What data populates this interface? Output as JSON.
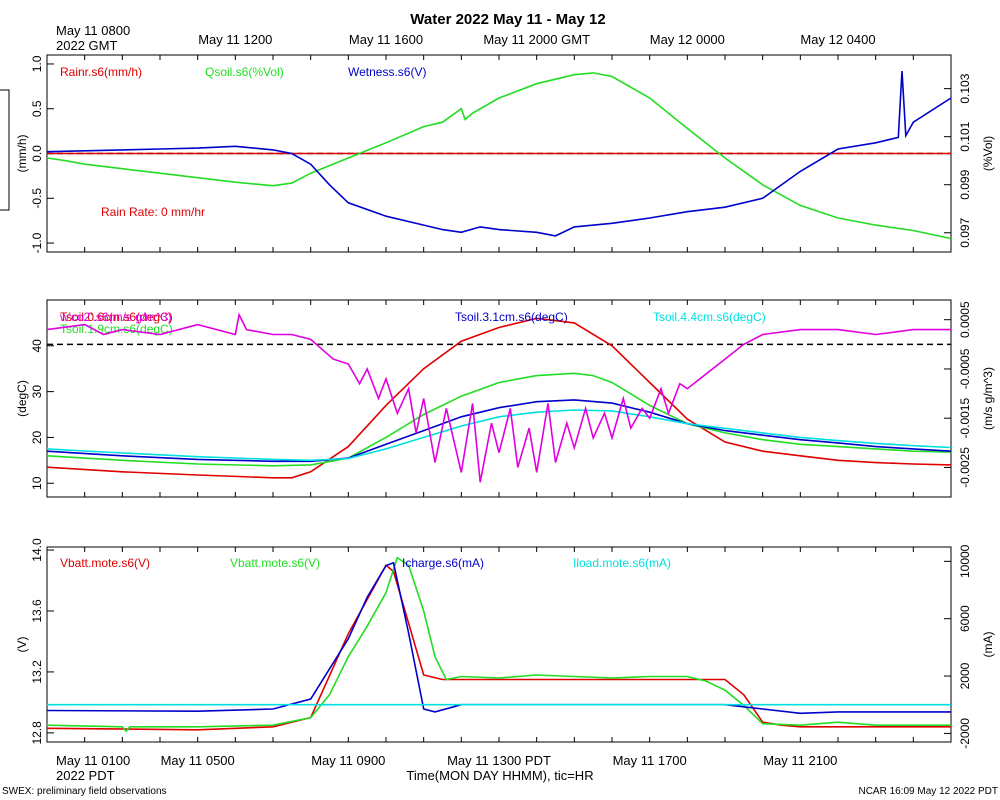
{
  "header": {
    "title": "Water 2022 May 11 - May 12",
    "start_gmt_line1": "May 11 0800",
    "start_gmt_line2": "2022 GMT",
    "start_pdt_line1": "May 11 0100",
    "start_pdt_line2": "2022 PDT",
    "xlabel": "Time(MON DAY HHMM), tic=HR",
    "footer_left": "SWEX: preliminary field observations",
    "footer_right": "NCAR 16:09 May 12 2022 PDT"
  },
  "colors": {
    "red": "#e00000",
    "green": "#22dd22",
    "blue": "#0000cc",
    "cyan": "#00e0e0",
    "magenta": "#e000e0",
    "black": "#000000"
  },
  "chart_data": [
    {
      "type": "line",
      "title": "Water 2022 May 11 - May 12",
      "xlim": [
        0,
        24
      ],
      "top_ticks": [
        {
          "x": 5,
          "label": "May 11 1200"
        },
        {
          "x": 9,
          "label": "May 11 1600"
        },
        {
          "x": 13,
          "label": "May 11 2000 GMT"
        },
        {
          "x": 17,
          "label": "May 12 0000"
        },
        {
          "x": 21,
          "label": "May 12 0400"
        }
      ],
      "ylabel_left": "(mm/h)",
      "ylabel_right": "(%Vol)",
      "ylim_left": [
        -1.1,
        1.1
      ],
      "ylim_right": [
        0.0962,
        0.1044
      ],
      "yticks_left": [
        "-1.0",
        "-0.5",
        "0.0",
        "0.5",
        "1.0"
      ],
      "yticks_right": [
        "0.097",
        "0.099",
        "0.101",
        "0.103"
      ],
      "annotation": "Rain Rate: 0 mm/hr",
      "series": [
        {
          "name": "Rainr.s6(mm/h)",
          "color": "red",
          "axis": "left",
          "x": [
            0,
            24
          ],
          "y": [
            0,
            0
          ]
        },
        {
          "name": "Qsoil.s6(%Vol)",
          "color": "green",
          "axis": "left",
          "x": [
            0,
            0.5,
            1,
            2,
            3,
            4,
            5,
            6,
            6.5,
            7,
            8,
            9,
            10,
            10.5,
            11,
            11.1,
            11.3,
            12,
            13,
            14,
            14.5,
            15,
            16,
            17,
            18,
            19,
            20,
            21,
            22,
            23,
            24
          ],
          "y": [
            -0.05,
            -0.08,
            -0.12,
            -0.17,
            -0.22,
            -0.27,
            -0.32,
            -0.36,
            -0.33,
            -0.22,
            -0.05,
            0.12,
            0.3,
            0.35,
            0.5,
            0.38,
            0.45,
            0.62,
            0.78,
            0.88,
            0.9,
            0.86,
            0.62,
            0.28,
            -0.05,
            -0.35,
            -0.58,
            -0.72,
            -0.8,
            -0.86,
            -0.95
          ]
        },
        {
          "name": "Wetness.s6(V)",
          "color": "blue",
          "axis": "left",
          "x": [
            0,
            1,
            2,
            3,
            4,
            5,
            6,
            6.5,
            7,
            7.5,
            8,
            9,
            10,
            10.5,
            11,
            11.5,
            12,
            13,
            13.5,
            14,
            15,
            16,
            17,
            18,
            19,
            20,
            21,
            22,
            22.6,
            22.7,
            22.8,
            23,
            24
          ],
          "y": [
            0.02,
            0.03,
            0.04,
            0.05,
            0.06,
            0.08,
            0.04,
            0,
            -0.12,
            -0.35,
            -0.55,
            -0.7,
            -0.8,
            -0.85,
            -0.88,
            -0.82,
            -0.85,
            -0.88,
            -0.92,
            -0.82,
            -0.78,
            -0.72,
            -0.65,
            -0.6,
            -0.5,
            -0.2,
            0.05,
            0.12,
            0.18,
            0.92,
            0.2,
            0.35,
            0.62
          ]
        }
      ]
    },
    {
      "type": "line",
      "xlim": [
        0,
        24
      ],
      "ylabel_left": "(degC)",
      "ylabel_right": "(m/s g/m^3)",
      "ylim_left": [
        7,
        50
      ],
      "ylim_right": [
        -0.0031,
        0.0009
      ],
      "yticks_left": [
        "10",
        "20",
        "30",
        "40"
      ],
      "yticks_right": [
        "-0.0025",
        "-0.0015",
        "-0.0005",
        "0.0005"
      ],
      "series": [
        {
          "name": "Tsoil.0.6cm.s6(degC)",
          "color": "red",
          "axis": "left",
          "x": [
            0,
            2,
            4,
            6,
            6.5,
            7,
            8,
            9,
            10,
            11,
            12,
            13,
            14,
            15,
            16,
            17,
            18,
            19,
            20,
            21,
            22,
            23,
            24
          ],
          "y": [
            13.5,
            12.5,
            11.8,
            11.2,
            11.2,
            12.5,
            18,
            27,
            35,
            41,
            44,
            46,
            45,
            40,
            32,
            24,
            19,
            17,
            16,
            15,
            14.5,
            14.2,
            14
          ]
        },
        {
          "name": "Tsoil.1.9cm.s6(degC)",
          "color": "green",
          "axis": "left",
          "x": [
            0,
            2,
            4,
            6,
            7,
            8,
            9,
            10,
            11,
            12,
            13,
            14,
            14.5,
            15,
            16,
            17,
            18,
            19,
            20,
            21,
            22,
            23,
            24
          ],
          "y": [
            16,
            15,
            14.2,
            13.8,
            14,
            15.5,
            20,
            25,
            29,
            32,
            33.5,
            34,
            33.5,
            32,
            27,
            23,
            21,
            19.5,
            18.5,
            18,
            17.5,
            17,
            16.8
          ]
        },
        {
          "name": "Tsoil.3.1cm.s6(degC)",
          "color": "blue",
          "axis": "left",
          "x": [
            0,
            2,
            4,
            6,
            7,
            8,
            9,
            10,
            11,
            12,
            13,
            14,
            15,
            16,
            17,
            18,
            19,
            20,
            21,
            22,
            23,
            24
          ],
          "y": [
            17,
            16,
            15.2,
            14.8,
            14.8,
            15.5,
            18.5,
            21.5,
            24.5,
            26.5,
            27.8,
            28.2,
            27.5,
            25.5,
            23,
            21.5,
            20.5,
            19.5,
            18.8,
            18,
            17.5,
            17
          ]
        },
        {
          "name": "Tsoil.4.4cm.s6(degC)",
          "color": "cyan",
          "axis": "left",
          "x": [
            0,
            2,
            4,
            6,
            7,
            8,
            9,
            10,
            11,
            12,
            13,
            14,
            15,
            16,
            17,
            18,
            19,
            20,
            21,
            22,
            23,
            24
          ],
          "y": [
            17.5,
            16.6,
            15.8,
            15.2,
            15,
            15.4,
            17.5,
            20,
            22.5,
            24.5,
            25.5,
            26,
            25.8,
            24.5,
            23,
            22,
            21,
            20,
            19.3,
            18.7,
            18.2,
            17.8
          ]
        },
        {
          "name": "w'co2'.s6(m/s g/m^3)",
          "color": "magenta",
          "axis": "right",
          "x": [
            0,
            1,
            1.5,
            2,
            3,
            4,
            5,
            5.1,
            5.3,
            6,
            6.5,
            7,
            7.3,
            7.6,
            8,
            8.3,
            8.5,
            8.8,
            9,
            9.3,
            9.6,
            9.8,
            10,
            10.3,
            10.6,
            11,
            11.3,
            11.5,
            11.8,
            12,
            12.3,
            12.5,
            12.8,
            13,
            13.3,
            13.5,
            13.8,
            14,
            14.3,
            14.5,
            14.8,
            15,
            15.3,
            15.5,
            15.8,
            16,
            16.3,
            16.5,
            16.8,
            17,
            17.5,
            18,
            18.5,
            19,
            20,
            21,
            22,
            23,
            24
          ],
          "y": [
            0.0003,
            0.0004,
            0.0002,
            0.0003,
            0.0002,
            0.0004,
            0.0002,
            0.0006,
            0.0003,
            0.0002,
            0.0002,
            0.0001,
            -0.0001,
            -0.0003,
            -0.0004,
            -0.0008,
            -0.0005,
            -0.0011,
            -0.0007,
            -0.0014,
            -0.0009,
            -0.0018,
            -0.0011,
            -0.0024,
            -0.0013,
            -0.0026,
            -0.0012,
            -0.0028,
            -0.0016,
            -0.0022,
            -0.0013,
            -0.0025,
            -0.0017,
            -0.0026,
            -0.0012,
            -0.0024,
            -0.0016,
            -0.0021,
            -0.0013,
            -0.0019,
            -0.0014,
            -0.0019,
            -0.0011,
            -0.0017,
            -0.0013,
            -0.0015,
            -0.0009,
            -0.0014,
            -0.0008,
            -0.0009,
            -0.0006,
            -0.0003,
            0.0,
            0.0002,
            0.0003,
            0.0003,
            0.0002,
            0.0003,
            0.0003
          ]
        }
      ]
    },
    {
      "type": "line",
      "xlim": [
        0,
        24
      ],
      "bottom_ticks": [
        {
          "x": 4,
          "label": "May 11 0500"
        },
        {
          "x": 8,
          "label": "May 11 0900"
        },
        {
          "x": 12,
          "label": "May 11 1300 PDT"
        },
        {
          "x": 16,
          "label": "May 11 1700"
        },
        {
          "x": 20,
          "label": "May 11 2100"
        }
      ],
      "ylabel_left": "(V)",
      "ylabel_right": "(mA)",
      "ylim_left": [
        12.74,
        14.02
      ],
      "ylim_right": [
        -2600,
        11000
      ],
      "yticks_left": [
        "12.8",
        "13.2",
        "13.6",
        "14.0"
      ],
      "yticks_right": [
        "-2000",
        "2000",
        "6000",
        "10000"
      ],
      "series": [
        {
          "name": "Vbatt.mote.s6(V)",
          "color": "red",
          "axis": "left",
          "x": [
            0,
            4,
            6,
            7,
            8,
            9,
            9.2,
            10,
            10.5,
            14,
            18,
            18.5,
            19,
            19.5,
            20,
            24
          ],
          "y": [
            12.83,
            12.82,
            12.84,
            12.9,
            13.45,
            13.9,
            13.86,
            13.18,
            13.15,
            13.15,
            13.15,
            13.05,
            12.87,
            12.85,
            12.84,
            12.84
          ]
        },
        {
          "name": "Vbatt.mote.s6(V)",
          "color": "green",
          "axis": "left",
          "x": [
            0,
            2,
            2.1,
            2.2,
            4,
            6,
            7,
            7.5,
            8,
            8.5,
            9,
            9.3,
            9.6,
            10,
            10.3,
            10.6,
            11,
            12,
            13,
            14,
            15,
            16,
            17,
            17.5,
            18,
            18.5,
            19,
            20,
            21,
            22,
            24
          ],
          "y": [
            12.85,
            12.84,
            12.81,
            12.84,
            12.84,
            12.85,
            12.9,
            13.05,
            13.3,
            13.5,
            13.72,
            13.95,
            13.9,
            13.6,
            13.3,
            13.15,
            13.17,
            13.16,
            13.18,
            13.17,
            13.16,
            13.17,
            13.17,
            13.14,
            13.08,
            12.98,
            12.86,
            12.85,
            12.87,
            12.85,
            12.85
          ]
        },
        {
          "name": "Icharge.s6(mA)",
          "color": "blue",
          "axis": "right",
          "x": [
            0,
            4,
            6,
            7,
            8,
            8.5,
            9,
            9.2,
            9.6,
            10,
            10.3,
            11,
            12,
            16,
            18,
            19,
            20,
            21,
            24
          ],
          "y": [
            -400,
            -450,
            -300,
            400,
            4600,
            7500,
            9700,
            9900,
            5000,
            -300,
            -500,
            0,
            0,
            0,
            0,
            -300,
            -600,
            -500,
            -500
          ]
        },
        {
          "name": "Iload.mote.s6(mA)",
          "color": "cyan",
          "axis": "right",
          "x": [
            0,
            24
          ],
          "y": [
            0,
            0
          ]
        }
      ]
    }
  ]
}
